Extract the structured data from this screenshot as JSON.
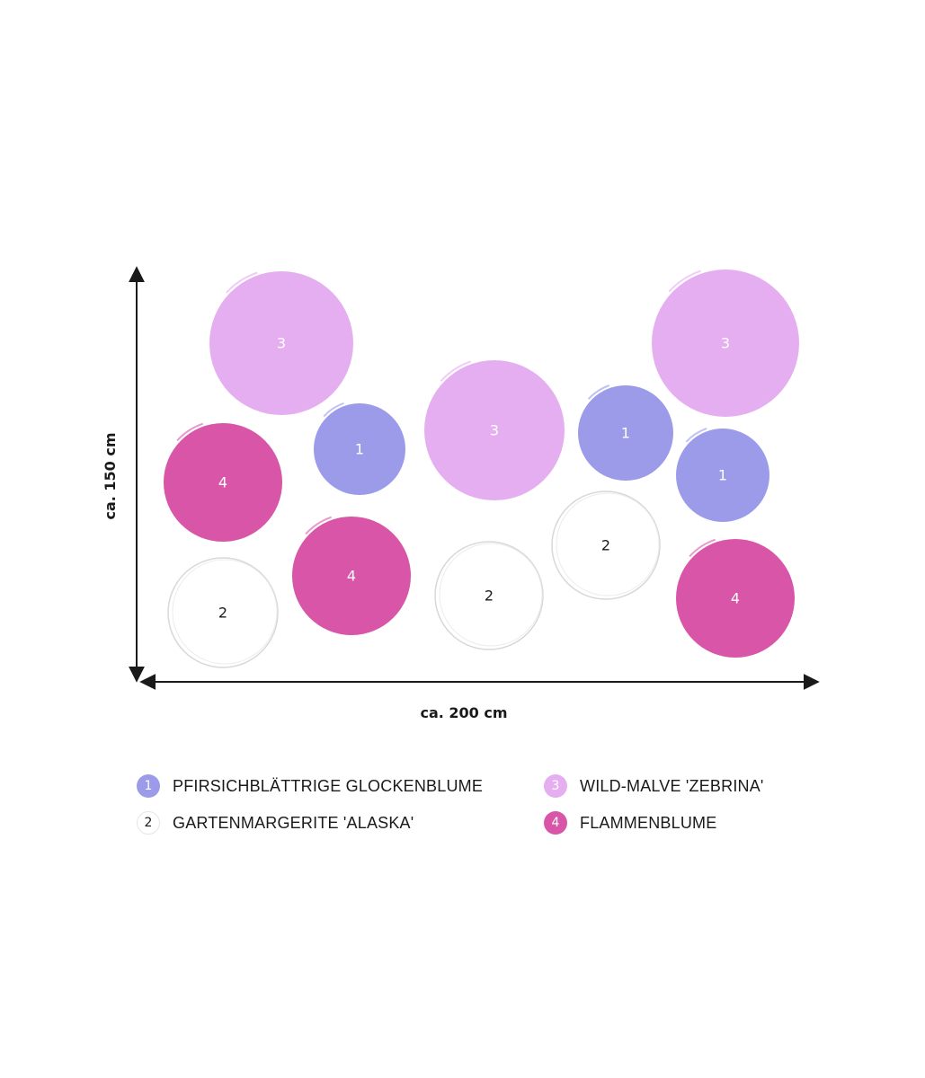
{
  "dimensions": {
    "width_label": "ca. 200 cm",
    "height_label": "ca. 150 cm"
  },
  "colors": {
    "1": "#9b9bea",
    "2": "#ffffff",
    "3": "#e5aef0",
    "4": "#d855a8",
    "axis": "#1a1a1a",
    "outline": "#d8d8d8"
  },
  "plants": [
    {
      "label": "1",
      "name": "PFIRSICHBLÄTTRIGE GLOCKENBLUME"
    },
    {
      "label": "2",
      "name": "GARTENMARGERITE 'ALASKA'"
    },
    {
      "label": "3",
      "name": "WILD-MALVE 'ZEBRINA'"
    },
    {
      "label": "4",
      "name": "FLAMMENBLUME"
    }
  ],
  "circles": [
    {
      "type": "3",
      "label": "3"
    },
    {
      "type": "3",
      "label": "3"
    },
    {
      "type": "3",
      "label": "3"
    },
    {
      "type": "1",
      "label": "1"
    },
    {
      "type": "1",
      "label": "1"
    },
    {
      "type": "1",
      "label": "1"
    },
    {
      "type": "4",
      "label": "4"
    },
    {
      "type": "4",
      "label": "4"
    },
    {
      "type": "4",
      "label": "4"
    },
    {
      "type": "2",
      "label": "2"
    },
    {
      "type": "2",
      "label": "2"
    },
    {
      "type": "2",
      "label": "2"
    }
  ]
}
